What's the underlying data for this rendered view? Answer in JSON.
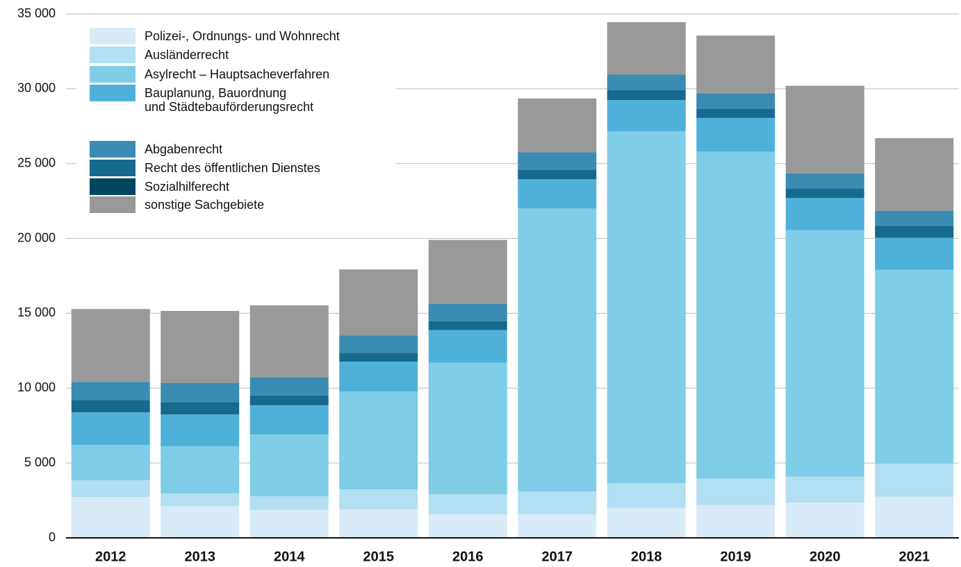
{
  "chart_data": {
    "type": "stacked_bar",
    "categories": [
      "2012",
      "2013",
      "2014",
      "2015",
      "2016",
      "2017",
      "2018",
      "2019",
      "2020",
      "2021"
    ],
    "series": [
      {
        "name": "Polizei-, Ordnungs- und Wohnrecht",
        "color": "#d8ebf7",
        "values": [
          2735,
          2130,
          1850,
          1900,
          1580,
          1580,
          2000,
          2200,
          2350,
          2750
        ]
      },
      {
        "name": "Ausländerrecht",
        "color": "#b2dff1",
        "values": [
          1110,
          840,
          930,
          1340,
          1340,
          1520,
          1650,
          1750,
          1750,
          2200
        ]
      },
      {
        "name": "Asylrecht – Hauptsacheverfahren",
        "color": "#7fcde7",
        "values": [
          2360,
          3150,
          4130,
          6540,
          8780,
          18900,
          23500,
          21850,
          16450,
          12950
        ]
      },
      {
        "name": "Bauplanung, Bauordnung\nund Städtebauförderungsrecht",
        "color": "#4fb1da",
        "values": [
          2180,
          2130,
          1950,
          1990,
          2180,
          1950,
          2100,
          2250,
          2150,
          2150
        ]
      },
      {
        "name": "Sozialhilferecht",
        "color": "#00465f",
        "values": [
          0,
          0,
          0,
          0,
          0,
          0,
          0,
          0,
          0,
          0
        ]
      },
      {
        "name": "Recht des öffentlichen Dienstes",
        "color": "#176a8d",
        "values": [
          830,
          790,
          650,
          600,
          600,
          650,
          650,
          600,
          650,
          800
        ]
      },
      {
        "name": "Abgabenrecht",
        "color": "#3a8cb2",
        "values": [
          1200,
          1300,
          1200,
          1160,
          1150,
          1150,
          1050,
          1050,
          1000,
          1000
        ]
      },
      {
        "name": "sonstige Sachgebiete",
        "color": "#999999",
        "values": [
          4870,
          4820,
          4820,
          4400,
          4270,
          3600,
          3500,
          3850,
          5850,
          4850
        ]
      }
    ],
    "ylim": [
      0,
      35000
    ],
    "yticks": [
      0,
      {
        "value": 5000,
        "label": "5 000"
      },
      {
        "value": 10000,
        "label": "10 000"
      },
      {
        "value": 15000,
        "label": "15 000"
      },
      {
        "value": 20000,
        "label": "20 000"
      },
      {
        "value": 25000,
        "label": "25 000"
      },
      {
        "value": 30000,
        "label": "30 000"
      },
      {
        "value": 35000,
        "label": "35 000"
      }
    ],
    "grid": true
  }
}
